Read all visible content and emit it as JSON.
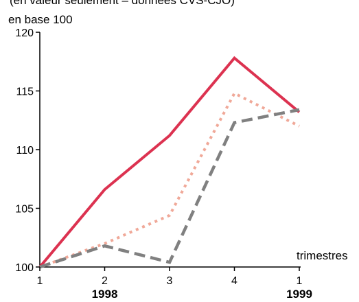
{
  "header": {
    "partial_title": "(en valeur seulement – données CVS-CJO)"
  },
  "chart_data": {
    "type": "line",
    "title": "",
    "ylabel": "en base 100",
    "xlabel": "trimestres",
    "ylim": [
      100,
      120
    ],
    "yticks": [
      100,
      105,
      110,
      115,
      120
    ],
    "categories": [
      "1",
      "2",
      "3",
      "4",
      "1"
    ],
    "years": [
      {
        "label": "1998",
        "category_index": 1
      },
      {
        "label": "1999",
        "category_index": 4
      }
    ],
    "grid": false,
    "legend": "none",
    "series": [
      {
        "style": "solid",
        "color": "#dc3250",
        "values": [
          100,
          106.6,
          111.2,
          117.8,
          113.2
        ]
      },
      {
        "style": "dotted",
        "color": "#f0a898",
        "values": [
          100,
          102.0,
          104.4,
          114.8,
          112.0
        ]
      },
      {
        "style": "dashed",
        "color": "#808080",
        "values": [
          100,
          101.8,
          100.4,
          112.3,
          113.4
        ]
      }
    ]
  }
}
